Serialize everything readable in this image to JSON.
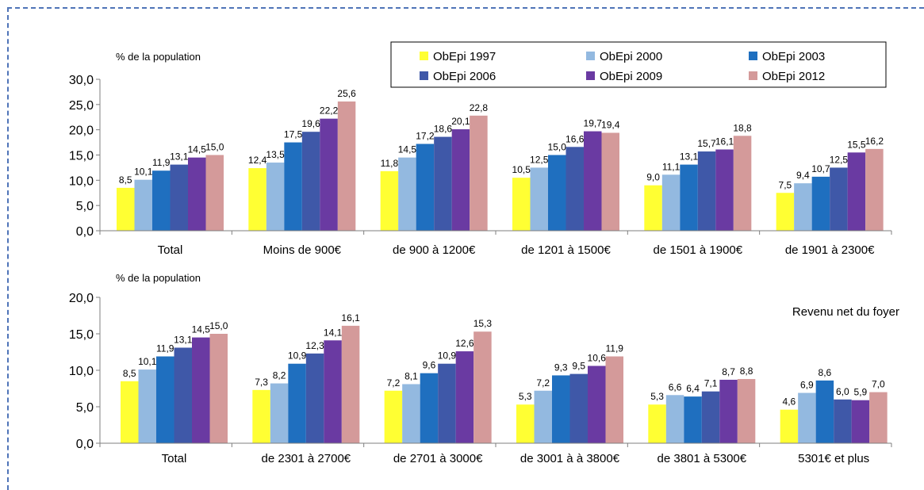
{
  "legend": {
    "entries": [
      {
        "name": "ObEpi 1997",
        "color": "#ffff33"
      },
      {
        "name": "ObEpi 2000",
        "color": "#93b9e0"
      },
      {
        "name": "ObEpi 2003",
        "color": "#1f6fbf"
      },
      {
        "name": "ObEpi 2006",
        "color": "#3f58a8"
      },
      {
        "name": "ObEpi 2009",
        "color": "#6a3aa2"
      },
      {
        "name": "ObEpi 2012",
        "color": "#d49a9a"
      }
    ]
  },
  "annotation": "Revenu net du foyer",
  "chart_data": [
    {
      "type": "bar",
      "ylabel": "% de la population",
      "ylim": [
        0,
        30
      ],
      "yticks": [
        "0,0",
        "5,0",
        "10,0",
        "15,0",
        "20,0",
        "25,0",
        "30,0"
      ],
      "categories": [
        "Total",
        "Moins de 900€",
        "de 900 à 1200€",
        "de 1201 à 1500€",
        "de 1501 à 1900€",
        "de 1901 à 2300€"
      ],
      "series": [
        {
          "name": "ObEpi 1997",
          "values": [
            8.5,
            12.4,
            11.8,
            10.5,
            9.0,
            7.5
          ],
          "labels": [
            "8,5",
            "12,4",
            "11,8",
            "10,5",
            "9,0",
            "7,5"
          ]
        },
        {
          "name": "ObEpi 2000",
          "values": [
            10.1,
            13.5,
            14.5,
            12.5,
            11.1,
            9.4
          ],
          "labels": [
            "10,1",
            "13,5",
            "14,5",
            "12,5",
            "11,1",
            "9,4"
          ]
        },
        {
          "name": "ObEpi 2003",
          "values": [
            11.9,
            17.5,
            17.2,
            15.0,
            13.1,
            10.7
          ],
          "labels": [
            "11,9",
            "17,5",
            "17,2",
            "15,0",
            "13,1",
            "10,7"
          ]
        },
        {
          "name": "ObEpi 2006",
          "values": [
            13.1,
            19.6,
            18.6,
            16.6,
            15.7,
            12.5
          ],
          "labels": [
            "13,1",
            "19,6",
            "18,6",
            "16,6",
            "15,7",
            "12,5"
          ]
        },
        {
          "name": "ObEpi 2009",
          "values": [
            14.5,
            22.2,
            20.1,
            19.7,
            16.1,
            15.5
          ],
          "labels": [
            "14,5",
            "22,2",
            "20,1",
            "19,7",
            "16,1",
            "15,5"
          ]
        },
        {
          "name": "ObEpi 2012",
          "values": [
            15.0,
            25.6,
            22.8,
            19.4,
            18.8,
            16.2
          ],
          "labels": [
            "15,0",
            "25,6",
            "22,8",
            "19,4",
            "18,8",
            "16,2"
          ]
        }
      ]
    },
    {
      "type": "bar",
      "ylabel": "% de la population",
      "ylim": [
        0,
        20
      ],
      "yticks": [
        "0,0",
        "5,0",
        "10,0",
        "15,0",
        "20,0"
      ],
      "categories": [
        "Total",
        "de 2301 à 2700€",
        "de 2701 à 3000€",
        "de 3001 à à 3800€",
        "de 3801 à 5300€",
        "5301€ et plus"
      ],
      "series": [
        {
          "name": "ObEpi 1997",
          "values": [
            8.5,
            7.3,
            7.2,
            5.3,
            5.3,
            4.6
          ],
          "labels": [
            "8,5",
            "7,3",
            "7,2",
            "5,3",
            "5,3",
            "4,6"
          ]
        },
        {
          "name": "ObEpi 2000",
          "values": [
            10.1,
            8.2,
            8.1,
            7.2,
            6.6,
            6.9
          ],
          "labels": [
            "10,1",
            "8,2",
            "8,1",
            "7,2",
            "6,6",
            "6,9"
          ]
        },
        {
          "name": "ObEpi 2003",
          "values": [
            11.9,
            10.9,
            9.6,
            9.3,
            6.4,
            8.6
          ],
          "labels": [
            "11,9",
            "10,9",
            "9,6",
            "9,3",
            "6,4",
            "8,6"
          ]
        },
        {
          "name": "ObEpi 2006",
          "values": [
            13.1,
            12.3,
            10.9,
            9.5,
            7.1,
            6.0
          ],
          "labels": [
            "13,1",
            "12,3",
            "10,9",
            "9,5",
            "7,1",
            "6,0"
          ]
        },
        {
          "name": "ObEpi 2009",
          "values": [
            14.5,
            14.1,
            12.6,
            10.6,
            8.7,
            5.9
          ],
          "labels": [
            "14,5",
            "14,1",
            "12,6",
            "10,6",
            "8,7",
            "5,9"
          ]
        },
        {
          "name": "ObEpi 2012",
          "values": [
            15.0,
            16.1,
            15.3,
            11.9,
            8.8,
            7.0
          ],
          "labels": [
            "15,0",
            "16,1",
            "15,3",
            "11,9",
            "8,8",
            "7,0"
          ]
        }
      ]
    }
  ]
}
